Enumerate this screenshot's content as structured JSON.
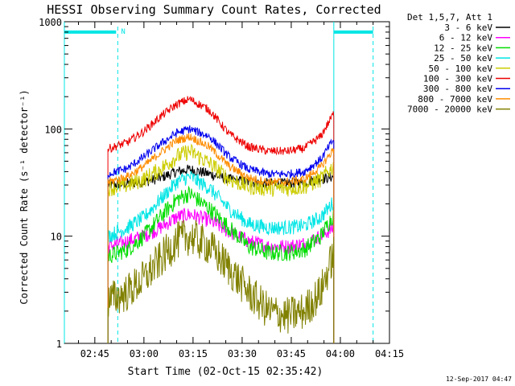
{
  "chart_data": {
    "type": "line",
    "title": "HESSI Observing Summary Count Rates, Corrected",
    "xlabel": "Start Time (02-Oct-15 02:35:42)",
    "ylabel": "Corrected Count Rate (s⁻¹ detector⁻¹)",
    "yscale": "log",
    "ylim": [
      1,
      1000
    ],
    "xlim": [
      "02:35:42",
      "04:15:00"
    ],
    "x_ticks": [
      "02:45",
      "03:00",
      "03:15",
      "03:30",
      "03:45",
      "04:00",
      "04:15"
    ],
    "y_ticks": [
      "1",
      "10",
      "100",
      "1000"
    ],
    "grid": false,
    "legend": {
      "placement": "right",
      "header": "Det 1,5,7, Att 1",
      "entries": [
        {
          "label": "3 - 6 keV",
          "color": "#000000"
        },
        {
          "label": "6 - 12 keV",
          "color": "#ff00ff"
        },
        {
          "label": "12 - 25 keV",
          "color": "#00dd00"
        },
        {
          "label": "25 - 50 keV",
          "color": "#00e5e5"
        },
        {
          "label": "50 - 100 keV",
          "color": "#cccc00"
        },
        {
          "label": "100 - 300 keV",
          "color": "#ee0000"
        },
        {
          "label": "300 - 800 keV",
          "color": "#0000ee"
        },
        {
          "label": "800 - 7000 keV",
          "color": "#ff8c00"
        },
        {
          "label": "7000 - 20000 keV",
          "color": "#808000"
        }
      ]
    },
    "series": [
      {
        "name": "3 - 6 keV",
        "color": "#000000",
        "x": [
          "02:49",
          "02:55",
          "03:00",
          "03:05",
          "03:10",
          "03:14",
          "03:20",
          "03:26",
          "03:32",
          "03:38",
          "03:44",
          "03:49",
          "03:54",
          "03:58"
        ],
        "y": [
          30,
          31,
          32,
          35,
          40,
          42,
          38,
          34,
          32,
          31,
          31,
          32,
          34,
          36
        ],
        "noise": 0.05
      },
      {
        "name": "6 - 12 keV",
        "color": "#ff00ff",
        "x": [
          "02:49",
          "02:55",
          "03:00",
          "03:05",
          "03:10",
          "03:14",
          "03:20",
          "03:26",
          "03:32",
          "03:38",
          "03:44",
          "03:49",
          "03:54",
          "03:58"
        ],
        "y": [
          8,
          9,
          10,
          12,
          15,
          16,
          14,
          11,
          9,
          8,
          8,
          8.5,
          10,
          12
        ],
        "noise": 0.07
      },
      {
        "name": "12 - 25 keV",
        "color": "#00dd00",
        "x": [
          "02:49",
          "02:55",
          "03:00",
          "03:05",
          "03:10",
          "03:14",
          "03:20",
          "03:26",
          "03:32",
          "03:38",
          "03:44",
          "03:49",
          "03:54",
          "03:58"
        ],
        "y": [
          6.5,
          7.5,
          10,
          15,
          22,
          25,
          18,
          12,
          8,
          7,
          7,
          7.5,
          10,
          16
        ],
        "noise": 0.08
      },
      {
        "name": "25 - 50 keV",
        "color": "#00e5e5",
        "x": [
          "02:49",
          "02:55",
          "03:00",
          "03:05",
          "03:10",
          "03:14",
          "03:20",
          "03:26",
          "03:32",
          "03:38",
          "03:44",
          "03:49",
          "03:54",
          "03:58"
        ],
        "y": [
          10,
          12,
          15,
          22,
          32,
          36,
          28,
          18,
          13,
          12,
          12,
          12.5,
          15,
          21
        ],
        "noise": 0.07
      },
      {
        "name": "50 - 100 keV",
        "color": "#cccc00",
        "x": [
          "02:49",
          "02:55",
          "03:00",
          "03:05",
          "03:10",
          "03:14",
          "03:20",
          "03:26",
          "03:32",
          "03:38",
          "03:44",
          "03:49",
          "03:54",
          "03:58"
        ],
        "y": [
          28,
          30,
          34,
          42,
          55,
          62,
          48,
          34,
          29,
          28,
          28,
          29,
          34,
          45
        ],
        "noise": 0.08
      },
      {
        "name": "100 - 300 keV",
        "color": "#ee0000",
        "x": [
          "02:49",
          "02:55",
          "03:00",
          "03:05",
          "03:10",
          "03:14",
          "03:20",
          "03:26",
          "03:32",
          "03:38",
          "03:44",
          "03:49",
          "03:54",
          "03:58"
        ],
        "y": [
          65,
          75,
          95,
          130,
          170,
          190,
          150,
          90,
          68,
          62,
          62,
          66,
          85,
          140
        ],
        "noise": 0.04
      },
      {
        "name": "300 - 800 keV",
        "color": "#0000ee",
        "x": [
          "02:49",
          "02:55",
          "03:00",
          "03:05",
          "03:10",
          "03:14",
          "03:20",
          "03:26",
          "03:32",
          "03:38",
          "03:44",
          "03:49",
          "03:54",
          "03:58"
        ],
        "y": [
          38,
          43,
          55,
          72,
          92,
          100,
          85,
          55,
          42,
          38,
          38,
          40,
          52,
          80
        ],
        "noise": 0.04
      },
      {
        "name": "800 - 7000 keV",
        "color": "#ff8c00",
        "x": [
          "02:49",
          "02:55",
          "03:00",
          "03:05",
          "03:10",
          "03:14",
          "03:20",
          "03:26",
          "03:32",
          "03:38",
          "03:44",
          "03:49",
          "03:54",
          "03:58"
        ],
        "y": [
          32,
          36,
          45,
          60,
          78,
          85,
          68,
          45,
          35,
          32,
          32,
          34,
          44,
          65
        ],
        "noise": 0.04
      },
      {
        "name": "7000 - 20000 keV",
        "color": "#808000",
        "x": [
          "02:49",
          "02:55",
          "03:00",
          "03:05",
          "03:10",
          "03:14",
          "03:20",
          "03:26",
          "03:32",
          "03:38",
          "03:44",
          "03:49",
          "03:54",
          "03:58"
        ],
        "y": [
          2.5,
          3,
          4,
          6,
          9,
          10,
          8,
          5,
          3,
          2,
          1.8,
          2,
          3,
          7
        ],
        "noise": 0.18
      }
    ],
    "flags": [
      {
        "label": "N",
        "color": "#00e5e5",
        "bar": [
          "02:35:42",
          "02:51:30"
        ],
        "y": 800,
        "marker": "02:52:00"
      },
      {
        "label": "",
        "color": "#00e5e5",
        "bar": [
          "03:58:00",
          "04:10:00"
        ],
        "y": 800,
        "marker": "04:10:00"
      }
    ],
    "vlines": [
      {
        "x": "02:35:42",
        "color": "#00e5e5"
      },
      {
        "x": "03:58:00",
        "color": "#00e5e5"
      }
    ],
    "annotation": "12-Sep-2017 04:47"
  }
}
